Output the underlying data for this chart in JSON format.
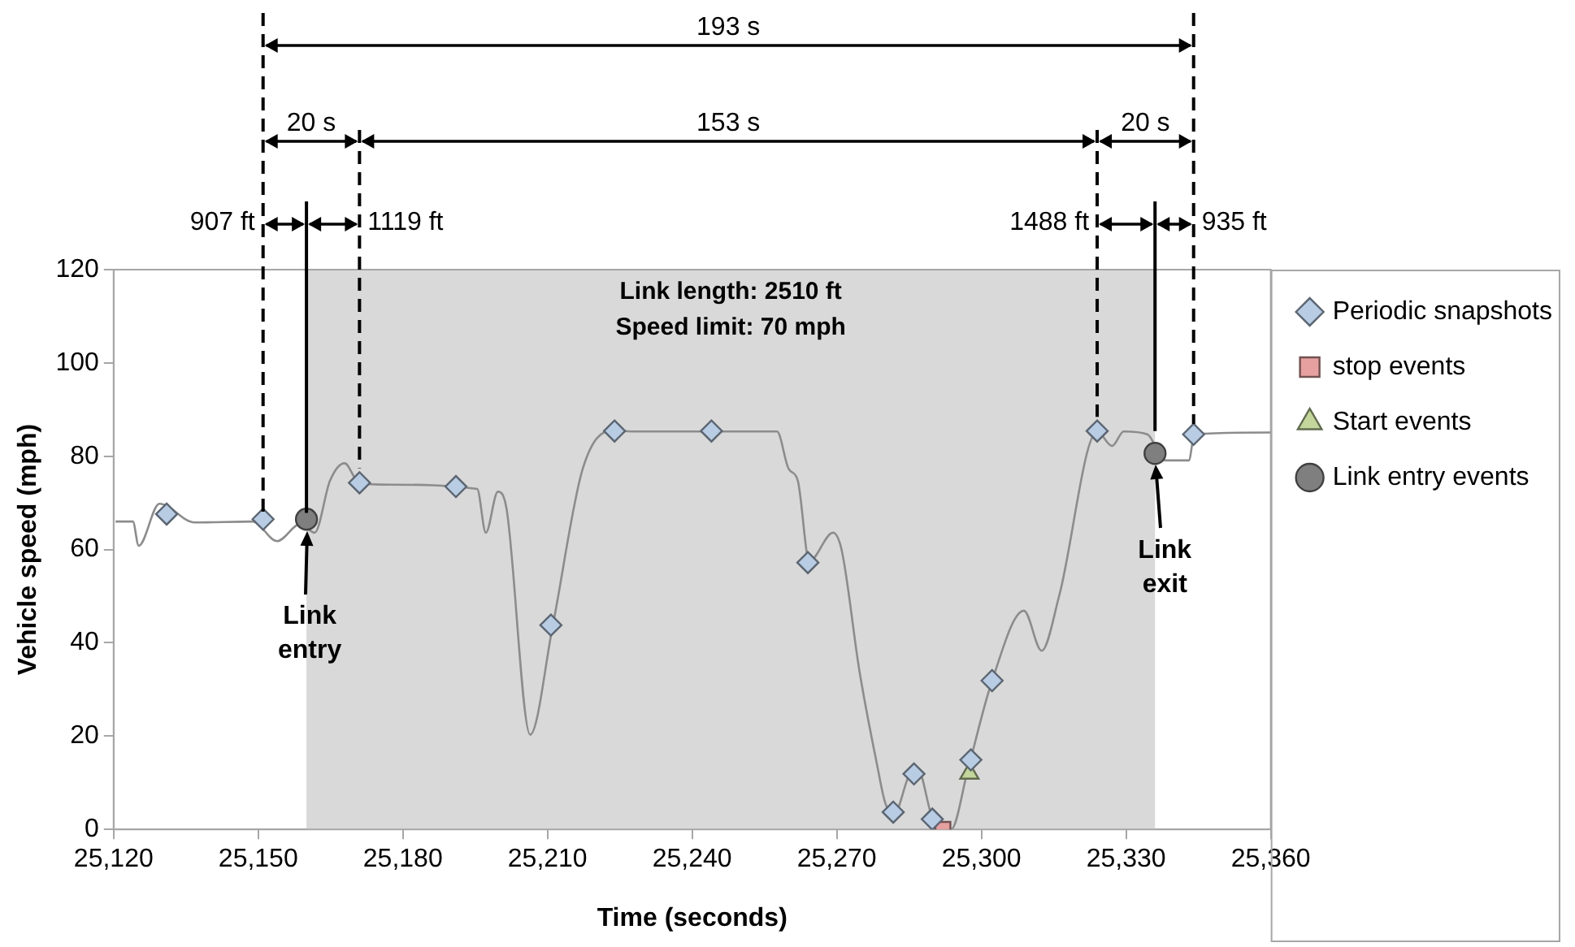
{
  "chart_data": {
    "type": "scatter",
    "xlabel": "Time (seconds)",
    "ylabel": "Vehicle speed (mph)",
    "xlim": [
      25120,
      25360
    ],
    "xticks": [
      {
        "value": 25120,
        "label": "25,120"
      },
      {
        "value": 25150,
        "label": "25,150"
      },
      {
        "value": 25180,
        "label": "25,180"
      },
      {
        "value": 25210,
        "label": "25,210"
      },
      {
        "value": 25240,
        "label": "25,240"
      },
      {
        "value": 25270,
        "label": "25,270"
      },
      {
        "value": 25300,
        "label": "25,300"
      },
      {
        "value": 25330,
        "label": "25,330"
      },
      {
        "value": 25360,
        "label": "25,360"
      }
    ],
    "ylim": [
      0,
      120
    ],
    "yticks": [
      0,
      20,
      40,
      60,
      80,
      100,
      120
    ],
    "legend": "right",
    "bands": [
      {
        "axis": "x",
        "from": 25160,
        "to": 25336,
        "color": "#d9d9d9"
      }
    ],
    "ref_lines": [
      {
        "axis": "x",
        "value": 25151,
        "line_style": "dashed",
        "color": "#000000"
      },
      {
        "axis": "x",
        "value": 25171,
        "line_style": "dashed",
        "color": "#000000"
      },
      {
        "axis": "x",
        "value": 25324,
        "line_style": "dashed",
        "color": "#000000"
      },
      {
        "axis": "x",
        "value": 25344,
        "line_style": "dashed",
        "color": "#000000"
      },
      {
        "axis": "x",
        "value": 25160,
        "line_style": "solid",
        "color": "#000000"
      },
      {
        "axis": "x",
        "value": 25336,
        "line_style": "solid",
        "color": "#000000"
      }
    ],
    "series": [
      {
        "name": "Periodic snapshots",
        "type": "scatter",
        "marker": "diamond",
        "color": "#b8cce4",
        "x": [
          25131,
          25151,
          25171,
          25191,
          25210.7,
          25223.9,
          25244,
          25264,
          25281.7,
          25286,
          25289.8,
          25297.8,
          25302.2,
          25324,
          25344
        ],
        "values": [
          67.6,
          66.5,
          74.3,
          73.5,
          43.8,
          85.4,
          85.4,
          57.2,
          3.7,
          11.9,
          2.2,
          14.9,
          31.9,
          85.4,
          84.7
        ]
      },
      {
        "name": "stop events",
        "type": "scatter",
        "marker": "square",
        "color": "#e6a0a0",
        "x": [
          25292
        ],
        "values": [
          0
        ]
      },
      {
        "name": "Start events",
        "type": "scatter",
        "marker": "triangle",
        "color": "#c3d69b",
        "x": [
          25297.5
        ],
        "values": [
          12
        ]
      },
      {
        "name": "Link entry events",
        "type": "scatter",
        "marker": "circle",
        "color": "#7f7f7f",
        "x": [
          25160,
          25336
        ],
        "values": [
          66.5,
          80.6
        ]
      },
      {
        "type": "line",
        "marker": "none",
        "line_style": "solid",
        "color": "#8c8c8c",
        "x": [
          25120.4,
          25124,
          25125.2,
          25129.5,
          25136.8,
          25148.9,
          25153.9,
          25158.8,
          25161.7,
          25164.9,
          25167.9,
          25170.9,
          25177.1,
          25195.4,
          25197.2,
          25199.7,
          25201.5,
          25206.4,
          25211.1,
          25217.3,
          25223.4,
          25228.3,
          25244.2,
          25257.6,
          25260,
          25261.9,
          25264.3,
          25269.2,
          25271,
          25274.7,
          25278.3,
          25280.1,
          25282,
          25285,
          25286.8,
          25289.9,
          25293.7,
          25297.2,
          25302.1,
          25308.8,
          25312.5,
          25316.1,
          25324,
          25327.1,
          25329.5,
          25334.4,
          25338.1,
          25343,
          25344.2,
          25360
        ],
        "values": [
          66,
          66,
          60.8,
          69.8,
          65.8,
          66,
          61.8,
          65.5,
          63.6,
          74.8,
          78.5,
          74.3,
          73.9,
          73,
          63.6,
          72.4,
          68.7,
          20.3,
          43.8,
          77.3,
          85.5,
          85.3,
          85.3,
          85.3,
          77.3,
          74.8,
          57.5,
          63.6,
          59.9,
          33.9,
          14.1,
          5.5,
          3.6,
          11.6,
          12.9,
          2.3,
          0,
          12.9,
          31.5,
          46.9,
          38.3,
          50,
          85.3,
          82.2,
          85.3,
          84.7,
          79.1,
          79.1,
          84.7,
          85.1
        ]
      }
    ],
    "annotations": [
      "193 s",
      "20 s",
      "153 s",
      "20 s",
      "907 ft",
      "1119 ft",
      "1488 ft",
      "935 ft",
      "Link length: 2510 ft",
      "Speed limit: 70 mph",
      "Link entry",
      "Link exit"
    ]
  }
}
